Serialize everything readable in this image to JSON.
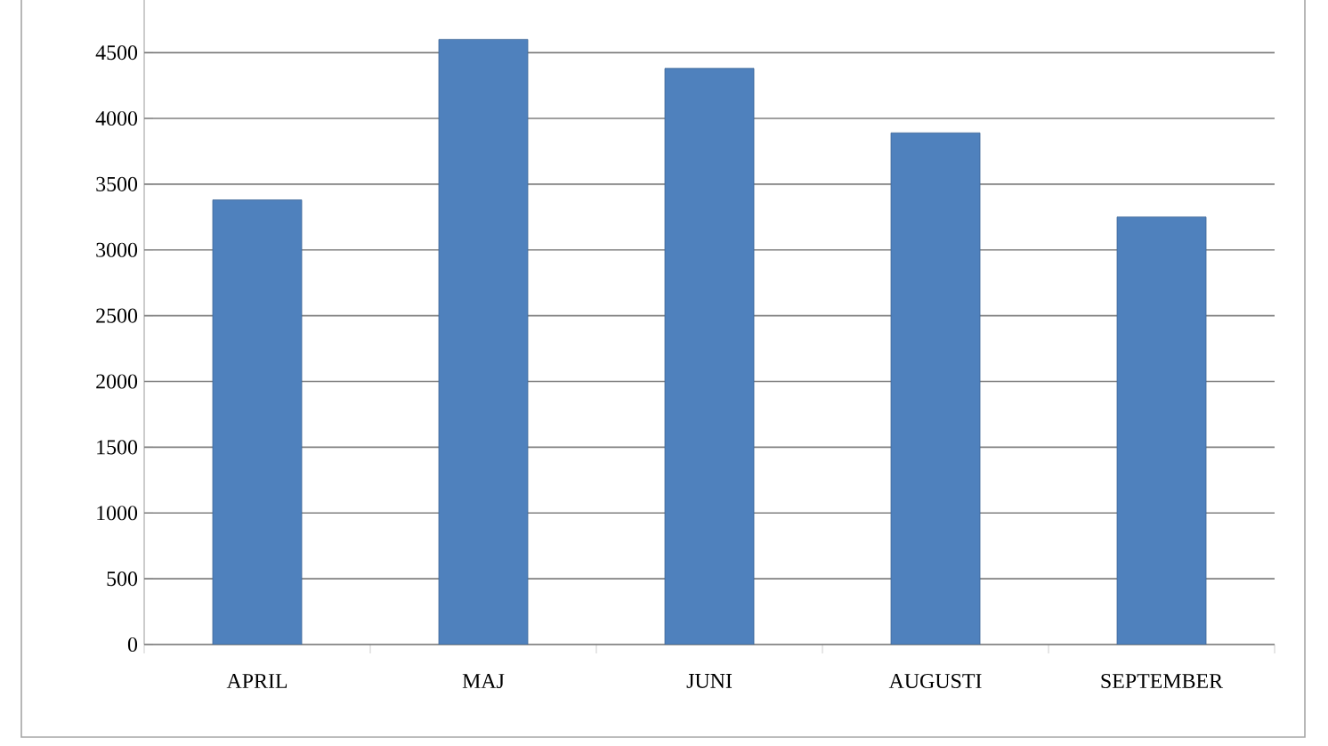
{
  "chart_data": {
    "type": "bar",
    "categories": [
      "APRIL",
      "MAJ",
      "JUNI",
      "AUGUSTI",
      "SEPTEMBER"
    ],
    "values": [
      3380,
      4600,
      4380,
      3890,
      3250
    ],
    "color": "#4f81bd",
    "ylim": [
      0,
      4900
    ],
    "yticks": [
      0,
      500,
      1000,
      1500,
      2000,
      2500,
      3000,
      3500,
      4000,
      4500
    ],
    "grid": "y"
  }
}
